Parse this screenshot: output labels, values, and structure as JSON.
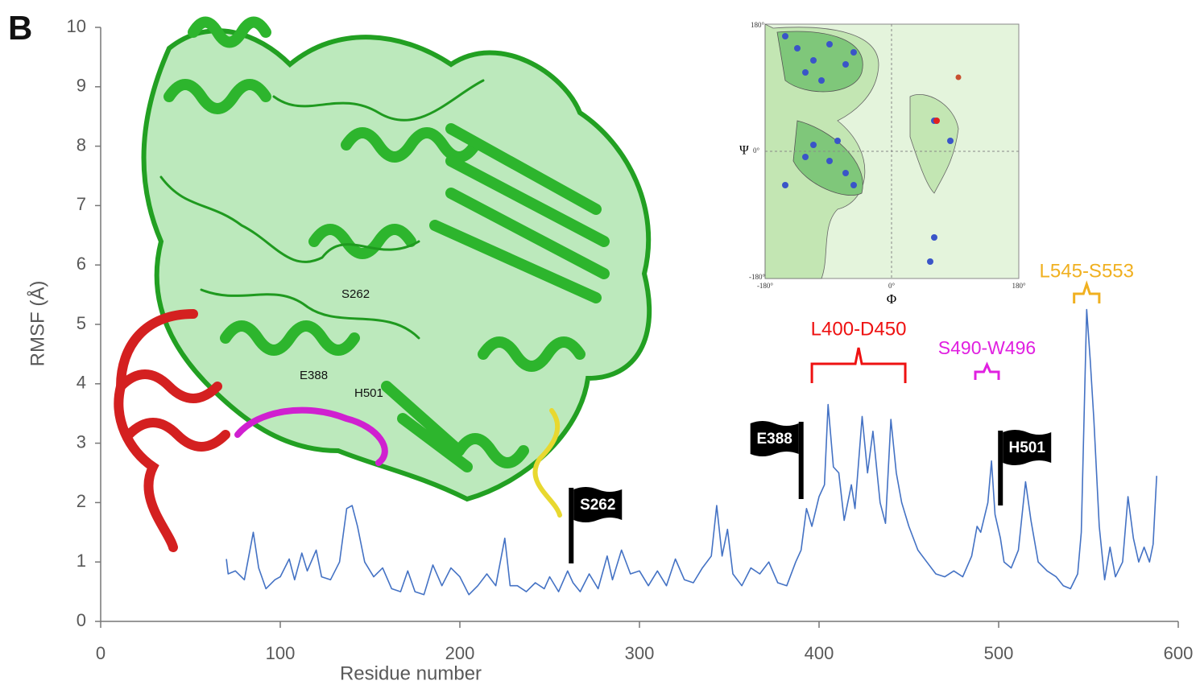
{
  "panel_label": "B",
  "chart_data": {
    "type": "line",
    "xlabel": "Residue number",
    "ylabel": "RMSF (Å)",
    "xlim": [
      0,
      600
    ],
    "xticks": [
      0,
      100,
      200,
      300,
      400,
      500,
      600
    ],
    "ylim": [
      0,
      10
    ],
    "yticks": [
      0,
      1,
      2,
      3,
      4,
      5,
      6,
      7,
      8,
      9,
      10
    ],
    "series": [
      {
        "name": "RMSF",
        "color": "#4472c4",
        "x": [
          70,
          71,
          75,
          80,
          85,
          88,
          92,
          97,
          100,
          105,
          108,
          112,
          115,
          120,
          123,
          128,
          133,
          137,
          140,
          143,
          147,
          152,
          157,
          162,
          167,
          171,
          175,
          180,
          185,
          190,
          195,
          200,
          205,
          210,
          215,
          220,
          225,
          228,
          232,
          237,
          242,
          247,
          250,
          255,
          260,
          263,
          267,
          272,
          277,
          282,
          285,
          290,
          295,
          300,
          305,
          310,
          315,
          320,
          325,
          330,
          335,
          340,
          343,
          346,
          349,
          352,
          357,
          362,
          367,
          372,
          377,
          382,
          387,
          390,
          393,
          396,
          400,
          403,
          405,
          408,
          411,
          414,
          418,
          420,
          424,
          427,
          430,
          434,
          437,
          440,
          443,
          446,
          450,
          455,
          460,
          465,
          470,
          475,
          480,
          485,
          488,
          490,
          494,
          496,
          498,
          501,
          503,
          507,
          511,
          515,
          518,
          522,
          527,
          532,
          536,
          540,
          544,
          546,
          549,
          551,
          553,
          556,
          559,
          562,
          565,
          569,
          572,
          575,
          578,
          581,
          584,
          586,
          588
        ],
        "values": [
          1.05,
          0.8,
          0.85,
          0.7,
          1.5,
          0.9,
          0.55,
          0.7,
          0.75,
          1.05,
          0.7,
          1.15,
          0.85,
          1.2,
          0.75,
          0.7,
          1.0,
          1.9,
          1.95,
          1.6,
          1.0,
          0.75,
          0.9,
          0.55,
          0.5,
          0.85,
          0.5,
          0.45,
          0.95,
          0.6,
          0.9,
          0.75,
          0.45,
          0.6,
          0.8,
          0.6,
          1.4,
          0.6,
          0.6,
          0.5,
          0.65,
          0.55,
          0.75,
          0.5,
          0.85,
          0.65,
          0.5,
          0.8,
          0.55,
          1.1,
          0.7,
          1.2,
          0.8,
          0.85,
          0.6,
          0.85,
          0.6,
          1.05,
          0.7,
          0.65,
          0.9,
          1.1,
          1.95,
          1.1,
          1.55,
          0.8,
          0.6,
          0.9,
          0.8,
          1.0,
          0.65,
          0.6,
          1.0,
          1.2,
          1.9,
          1.6,
          2.1,
          2.3,
          3.65,
          2.6,
          2.5,
          1.7,
          2.3,
          1.9,
          3.45,
          2.5,
          3.2,
          2.0,
          1.65,
          3.4,
          2.5,
          2.0,
          1.6,
          1.2,
          1.0,
          0.8,
          0.75,
          0.85,
          0.75,
          1.1,
          1.6,
          1.5,
          2.0,
          2.7,
          1.8,
          1.4,
          1.0,
          0.9,
          1.2,
          2.35,
          1.7,
          1.0,
          0.85,
          0.75,
          0.6,
          0.55,
          0.8,
          1.5,
          5.25,
          4.4,
          3.4,
          1.6,
          0.7,
          1.25,
          0.75,
          1.0,
          2.1,
          1.4,
          1.0,
          1.25,
          1.0,
          1.3,
          2.45
        ]
      }
    ],
    "regions": [
      {
        "label": "L400-D450",
        "color": "#ee1111",
        "span": [
          396,
          448
        ]
      },
      {
        "label": "S490-W496",
        "color": "#e020e0",
        "span": [
          487,
          500
        ]
      },
      {
        "label": "L545-S553",
        "color": "#f0b020",
        "span": [
          542,
          556
        ]
      }
    ],
    "flags": [
      {
        "label": "S262",
        "residue": 262
      },
      {
        "label": "E388",
        "residue": 390
      },
      {
        "label": "H501",
        "residue": 501
      }
    ]
  },
  "structure": {
    "labels": [
      "S262",
      "E388",
      "H501"
    ]
  },
  "inset": {
    "x_label": "Φ",
    "y_label": "Ψ",
    "x_tick_labels": [
      "-180°",
      "0°",
      "180°"
    ],
    "y_tick_labels": [
      "-180°",
      "0°",
      "180°"
    ]
  }
}
